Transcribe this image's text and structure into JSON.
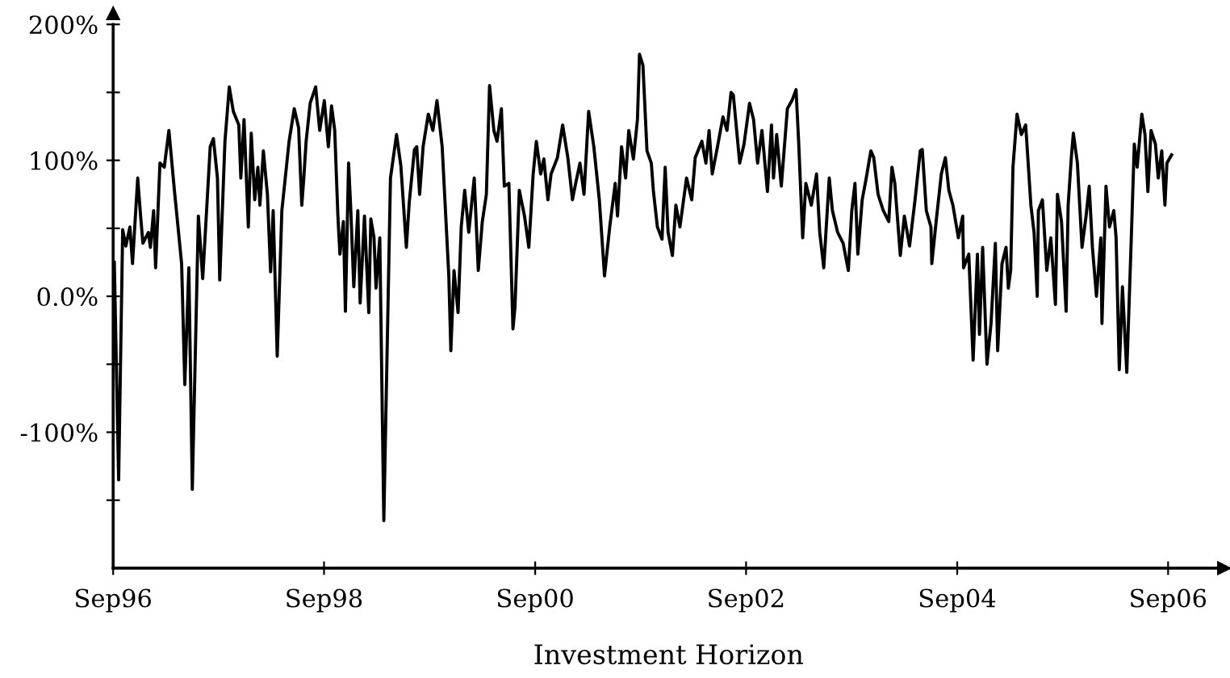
{
  "chart_data": {
    "type": "line",
    "xlabel": "Investment Horizon",
    "line_style": "solid",
    "marker": "none",
    "grid": false,
    "legend": false,
    "xlim": [
      "1996-09-01",
      "2007-03-13"
    ],
    "xticks": [
      {
        "value": "1996-09-01",
        "label": "Sep96"
      },
      {
        "value": "1998-09-01",
        "label": "Sep98"
      },
      {
        "value": "2000-09-01",
        "label": "Sep00"
      },
      {
        "value": "2002-09-01",
        "label": "Sep02"
      },
      {
        "value": "2004-09-01",
        "label": "Sep04"
      },
      {
        "value": "2006-09-01",
        "label": "Sep06"
      }
    ],
    "ylim": [
      -200,
      200
    ],
    "yticks": [
      {
        "value": -150,
        "label": null
      },
      {
        "value": -100,
        "label": "-100%"
      },
      {
        "value": -50,
        "label": null
      },
      {
        "value": 0,
        "label": "0.0%"
      },
      {
        "value": 50,
        "label": null
      },
      {
        "value": 100,
        "label": "100%"
      },
      {
        "value": 150,
        "label": null
      },
      {
        "value": 200,
        "label": "200%"
      }
    ],
    "series": [
      {
        "color": "#000000",
        "x": [
          "1996-09-05",
          "1996-09-20",
          "1996-10-04",
          "1996-10-15",
          "1996-10-29",
          "1996-11-07",
          "1996-11-25",
          "1996-12-05",
          "1996-12-13",
          "1997-01-01",
          "1997-01-08",
          "1997-01-19",
          "1997-01-26",
          "1997-02-10",
          "1997-02-25",
          "1997-03-13",
          "1997-04-01",
          "1997-04-26",
          "1997-05-07",
          "1997-05-21",
          "1997-06-02",
          "1997-06-23",
          "1997-07-08",
          "1997-08-03",
          "1997-08-14",
          "1997-08-28",
          "1997-09-05",
          "1997-09-23",
          "1997-10-08",
          "1997-10-22",
          "1997-11-10",
          "1997-11-17",
          "1997-11-28",
          "1997-12-13",
          "1997-12-23",
          "1998-01-04",
          "1998-01-15",
          "1998-01-22",
          "1998-02-03",
          "1998-02-17",
          "1998-02-28",
          "1998-03-09",
          "1998-03-23",
          "1998-04-08",
          "1998-05-03",
          "1998-05-21",
          "1998-06-05",
          "1998-06-16",
          "1998-06-23",
          "1998-07-01",
          "1998-07-15",
          "1998-08-03",
          "1998-08-17",
          "1998-09-02",
          "1998-09-16",
          "1998-09-27",
          "1998-10-08",
          "1998-10-19",
          "1998-10-26",
          "1998-11-07",
          "1998-11-14",
          "1998-11-25",
          "1998-12-02",
          "1998-12-13",
          "1998-12-27",
          "1999-01-04",
          "1999-01-19",
          "1999-02-03",
          "1999-02-10",
          "1999-02-21",
          "1999-02-28",
          "1999-03-13",
          "1999-03-27",
          "1999-04-19",
          "1999-05-10",
          "1999-05-25",
          "1999-06-13",
          "1999-06-23",
          "1999-07-11",
          "1999-07-19",
          "1999-07-29",
          "1999-08-10",
          "1999-08-28",
          "1999-09-13",
          "1999-09-27",
          "1999-10-15",
          "1999-11-07",
          "1999-11-14",
          "1999-11-25",
          "1999-12-09",
          "1999-12-20",
          "2000-01-01",
          "2000-01-15",
          "2000-02-03",
          "2000-02-17",
          "2000-03-02",
          "2000-03-16",
          "2000-03-27",
          "2000-04-11",
          "2000-04-22",
          "2000-05-07",
          "2000-05-17",
          "2000-06-02",
          "2000-06-16",
          "2000-06-23",
          "2000-07-08",
          "2000-07-26",
          "2000-08-10",
          "2000-08-25",
          "2000-09-05",
          "2000-09-20",
          "2000-10-01",
          "2000-10-15",
          "2000-10-26",
          "2000-11-17",
          "2000-12-05",
          "2000-12-23",
          "2001-01-08",
          "2001-01-19",
          "2001-02-03",
          "2001-02-17",
          "2001-03-05",
          "2001-03-23",
          "2001-04-11",
          "2001-04-29",
          "2001-05-17",
          "2001-06-05",
          "2001-06-13",
          "2001-06-27",
          "2001-07-11",
          "2001-07-22",
          "2001-08-07",
          "2001-08-21",
          "2001-08-28",
          "2001-09-09",
          "2001-09-23",
          "2001-10-08",
          "2001-10-15",
          "2001-10-29",
          "2001-11-14",
          "2001-11-25",
          "2001-12-05",
          "2001-12-20",
          "2002-01-01",
          "2002-01-15",
          "2002-02-07",
          "2002-02-25",
          "2002-03-09",
          "2002-04-01",
          "2002-04-15",
          "2002-04-26",
          "2002-05-07",
          "2002-05-25",
          "2002-06-13",
          "2002-06-27",
          "2002-07-11",
          "2002-07-19",
          "2002-08-10",
          "2002-08-25",
          "2002-09-13",
          "2002-09-27",
          "2002-10-11",
          "2002-10-26",
          "2002-11-14",
          "2002-11-28",
          "2002-12-05",
          "2002-12-16",
          "2003-01-01",
          "2003-01-22",
          "2003-02-07",
          "2003-02-21",
          "2003-03-02",
          "2003-03-16",
          "2003-03-27",
          "2003-04-15",
          "2003-05-03",
          "2003-05-14",
          "2003-05-28",
          "2003-06-16",
          "2003-06-27",
          "2003-07-15",
          "2003-08-03",
          "2003-08-21",
          "2003-09-02",
          "2003-09-13",
          "2003-09-23",
          "2003-10-08",
          "2003-10-22",
          "2003-11-07",
          "2003-11-17",
          "2003-12-02",
          "2003-12-20",
          "2004-01-08",
          "2004-01-19",
          "2004-01-29",
          "2004-02-17",
          "2004-03-02",
          "2004-03-20",
          "2004-04-08",
          "2004-04-26",
          "2004-05-03",
          "2004-05-17",
          "2004-06-02",
          "2004-06-05",
          "2004-06-20",
          "2004-07-08",
          "2004-07-22",
          "2004-08-03",
          "2004-08-17",
          "2004-09-05",
          "2004-09-20",
          "2004-09-23",
          "2004-10-11",
          "2004-10-26",
          "2004-11-10",
          "2004-11-17",
          "2004-11-28",
          "2004-12-13",
          "2004-12-27",
          "2005-01-11",
          "2005-01-19",
          "2005-02-03",
          "2005-02-17",
          "2005-02-25",
          "2005-03-05",
          "2005-03-13",
          "2005-03-27",
          "2005-04-11",
          "2005-04-26",
          "2005-05-14",
          "2005-05-25",
          "2005-06-05",
          "2005-06-09",
          "2005-06-23",
          "2005-07-08",
          "2005-07-22",
          "2005-08-07",
          "2005-08-14",
          "2005-08-28",
          "2005-09-13",
          "2005-09-20",
          "2005-10-01",
          "2005-10-08",
          "2005-10-22",
          "2005-11-07",
          "2005-11-21",
          "2005-12-02",
          "2005-12-13",
          "2005-12-27",
          "2006-01-11",
          "2006-01-15",
          "2006-01-29",
          "2006-02-10",
          "2006-02-25",
          "2006-03-05",
          "2006-03-16",
          "2006-03-27",
          "2006-04-11",
          "2006-04-26",
          "2006-05-07",
          "2006-05-17",
          "2006-06-02",
          "2006-06-13",
          "2006-06-23",
          "2006-07-04",
          "2006-07-19",
          "2006-07-29",
          "2006-08-10",
          "2006-08-21",
          "2006-08-28",
          "2006-09-13"
        ],
        "values": [
          25,
          -135,
          49,
          37,
          51,
          24,
          87,
          59,
          39,
          47,
          36,
          63,
          21,
          98,
          95,
          122,
          78,
          24,
          -65,
          21,
          -142,
          59,
          13,
          110,
          116,
          87,
          12,
          114,
          154,
          136,
          126,
          87,
          130,
          51,
          120,
          71,
          95,
          67,
          107,
          75,
          18,
          63,
          -44,
          63,
          114,
          138,
          124,
          67,
          87,
          114,
          142,
          154,
          122,
          144,
          110,
          140,
          122,
          59,
          31,
          55,
          -11,
          98,
          67,
          7,
          63,
          -5,
          59,
          -12,
          57,
          43,
          6,
          43,
          -165,
          87,
          119,
          96,
          36,
          69,
          108,
          110,
          75,
          110,
          134,
          122,
          144,
          110,
          15,
          -40,
          19,
          -12,
          51,
          78,
          47,
          87,
          19,
          55,
          75,
          155,
          122,
          114,
          138,
          81,
          83,
          -24,
          -8,
          78,
          59,
          36,
          90,
          114,
          90,
          101,
          71,
          90,
          102,
          126,
          102,
          71,
          83,
          98,
          75,
          136,
          110,
          71,
          15,
          51,
          83,
          59,
          110,
          87,
          122,
          101,
          130,
          178,
          170,
          107,
          98,
          78,
          51,
          42,
          95,
          47,
          30,
          67,
          51,
          87,
          71,
          102,
          114,
          98,
          122,
          90,
          110,
          132,
          122,
          150,
          148,
          98,
          112,
          142,
          130,
          98,
          122,
          77,
          126,
          87,
          119,
          81,
          138,
          144,
          152,
          114,
          43,
          83,
          67,
          90,
          47,
          21,
          87,
          63,
          47,
          39,
          19,
          63,
          83,
          31,
          71,
          87,
          107,
          102,
          75,
          63,
          55,
          95,
          83,
          30,
          59,
          37,
          71,
          107,
          108,
          63,
          51,
          24,
          55,
          90,
          102,
          78,
          67,
          43,
          59,
          21,
          31,
          -47,
          31,
          -28,
          36,
          -50,
          -20,
          39,
          -40,
          24,
          36,
          6,
          19,
          95,
          134,
          119,
          126,
          67,
          47,
          0,
          63,
          71,
          19,
          43,
          -6,
          75,
          55,
          -11,
          67,
          102,
          120,
          98,
          36,
          59,
          81,
          36,
          0,
          43,
          -20,
          81,
          51,
          63,
          43,
          -54,
          7,
          -56,
          39,
          112,
          95,
          134,
          119,
          77,
          122,
          112,
          87,
          107,
          67,
          98,
          104
        ]
      }
    ]
  }
}
